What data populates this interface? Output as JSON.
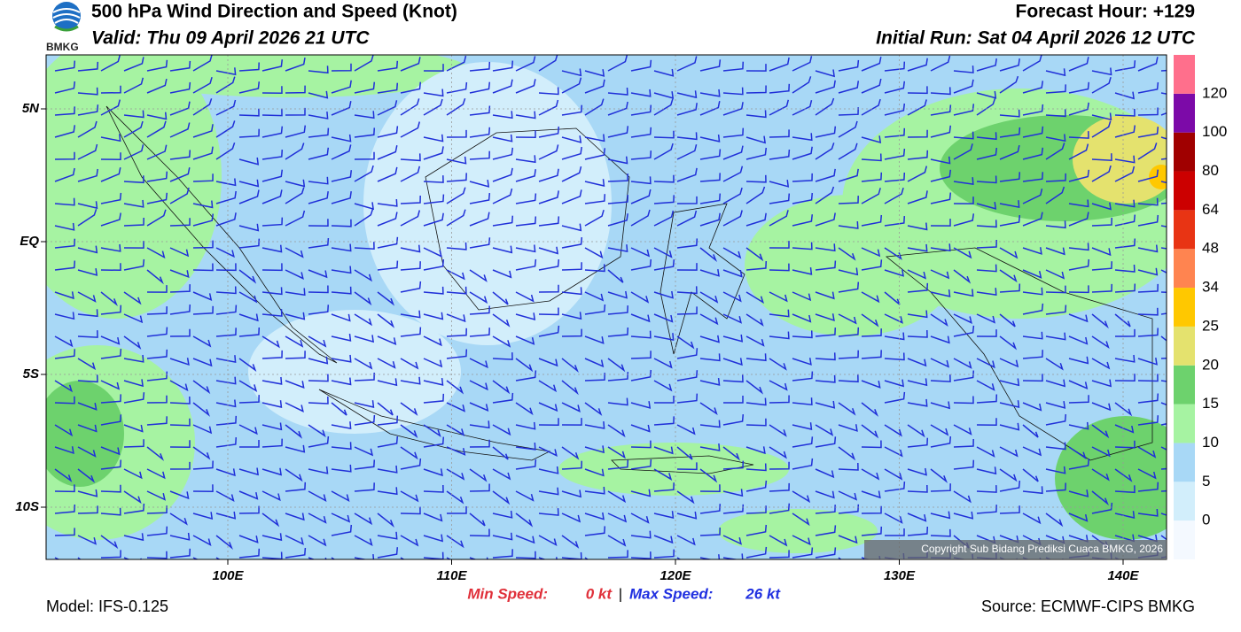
{
  "header": {
    "title": "500 hPa Wind Direction and Speed (Knot)",
    "valid": "Valid: Thu 09 April 2026 21 UTC",
    "forecast_hour": "Forecast Hour: +129",
    "initial_run": "Initial Run: Sat 04 April 2026 12 UTC",
    "logo_text": "BMKG"
  },
  "map": {
    "lat_labels": [
      "5N",
      "EQ",
      "5S",
      "10S"
    ],
    "lon_labels": [
      "100E",
      "110E",
      "120E",
      "130E",
      "140E"
    ],
    "copyright": "Copyright Sub Bidang Prediksi Cuaca BMKG, 2026"
  },
  "legend": {
    "colors": [
      "#f4f9ff",
      "#d2eefb",
      "#a8d8f6",
      "#a6f3a2",
      "#6dd26d",
      "#e4e26e",
      "#ffc800",
      "#ff8450",
      "#e83414",
      "#cc0000",
      "#a00000",
      "#7c0aa8",
      "#ff6f8c"
    ],
    "labels": [
      "0",
      "5",
      "10",
      "15",
      "20",
      "25",
      "34",
      "48",
      "64",
      "80",
      "100",
      "120"
    ]
  },
  "footer": {
    "min_label": "Min Speed:",
    "min_value": "0 kt",
    "separator": "|",
    "max_label": "Max Speed:",
    "max_value": "26 kt",
    "model": "Model: IFS-0.125",
    "source": "Source: ECMWF-CIPS BMKG"
  }
}
